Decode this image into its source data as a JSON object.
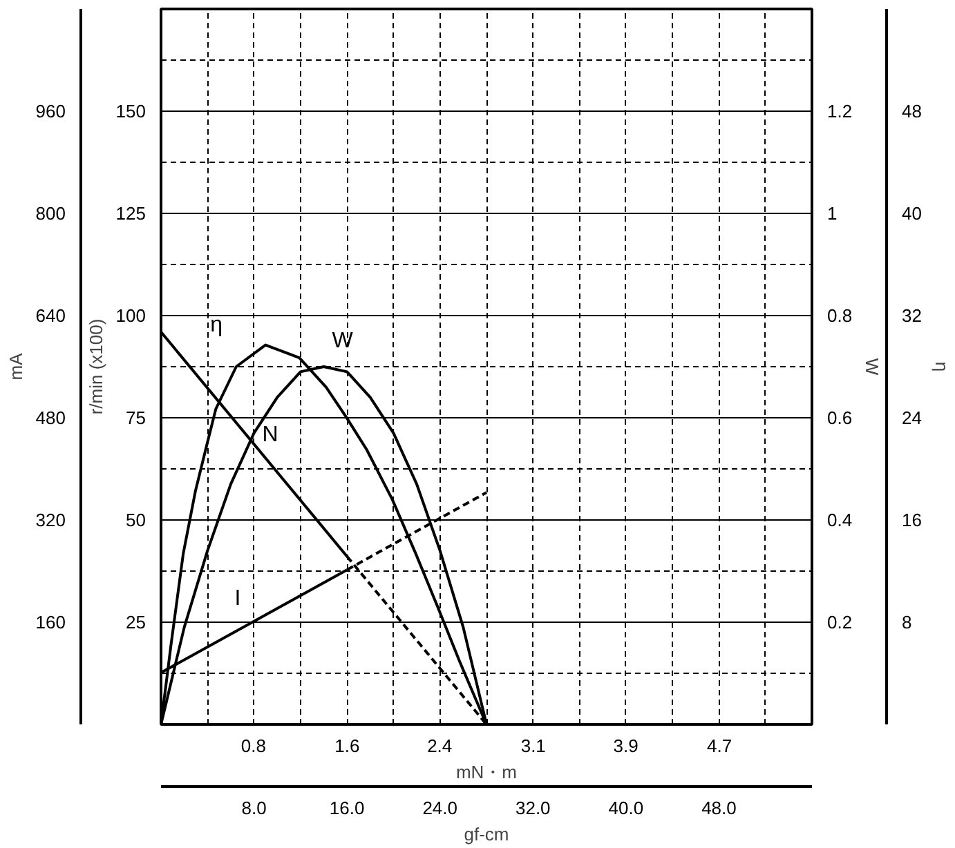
{
  "chart_data": [
    {
      "type": "line",
      "xlabel": "gf-cm",
      "x2label": "mN・m",
      "ylabel": "r/min (x100)",
      "y2label": "mA",
      "y3label": "W",
      "xlim": [
        0,
        56
      ],
      "xticks": [
        {
          "value": 8,
          "label": "8.0"
        },
        {
          "value": 16,
          "label": "16.0"
        },
        {
          "value": 24,
          "label": "24.0"
        },
        {
          "value": 32,
          "label": "32.0"
        },
        {
          "value": 40,
          "label": "40.0"
        },
        {
          "value": 48,
          "label": "48.0"
        }
      ],
      "x2lim": [
        0,
        5.49
      ],
      "x2ticks": [
        {
          "value": 0.78,
          "label": "0.8"
        },
        {
          "value": 1.57,
          "label": "1.6"
        },
        {
          "value": 2.35,
          "label": "2.4"
        },
        {
          "value": 3.14,
          "label": "3.1"
        },
        {
          "value": 3.92,
          "label": "3.9"
        },
        {
          "value": 4.71,
          "label": "4.7"
        }
      ],
      "ylim": [
        0,
        175
      ],
      "yticks": [
        25,
        50,
        75,
        100,
        125,
        150
      ],
      "y2lim": [
        0,
        1120
      ],
      "y2ticks": [
        160,
        320,
        480,
        640,
        800,
        960
      ],
      "y3lim": [
        0,
        1.4
      ],
      "y3ticks": [
        0.2,
        0.4,
        0.6,
        0.8,
        1.0,
        1.2
      ],
      "grid": true,
      "series": [
        {
          "name": "N",
          "color": "#000000",
          "x": [
            0,
            16
          ],
          "values": [
            96,
            41.1
          ]
        },
        {
          "color": "#000000",
          "x": [
            16,
            28
          ],
          "values": [
            41.1,
            0
          ],
          "line_style": "dashed"
        },
        {
          "name": "I",
          "color": "#000000",
          "axis": "y2",
          "x": [
            0,
            16
          ],
          "values": [
            81,
            242
          ]
        },
        {
          "color": "#000000",
          "axis": "y2",
          "x": [
            16,
            28
          ],
          "values": [
            242,
            363
          ],
          "line_style": "dashed"
        },
        {
          "name": "W",
          "color": "#000000",
          "axis": "y3",
          "x": [
            0,
            2,
            4,
            6,
            8,
            10,
            12,
            14,
            16,
            18,
            20,
            22,
            24,
            26,
            28
          ],
          "values": [
            0,
            0.19,
            0.34,
            0.47,
            0.57,
            0.64,
            0.69,
            0.7,
            0.69,
            0.64,
            0.57,
            0.47,
            0.34,
            0.19,
            0
          ]
        }
      ]
    },
    {
      "type": "line",
      "ylabel": "η",
      "xlim": [
        0,
        56
      ],
      "ylim": [
        0,
        56
      ],
      "yticks": [
        8,
        16,
        24,
        32,
        40,
        48
      ],
      "tick_labels": "y",
      "series": [
        {
          "name": "η",
          "color": "#000000",
          "x": [
            0,
            0.87,
            1.92,
            2.97,
            3.92,
            4.72,
            6.47,
            8.99,
            11.9,
            14.2,
            15.9,
            17.7,
            19.9,
            21.9,
            23.8,
            25.7,
            28
          ],
          "values": [
            0,
            6.3,
            13.4,
            18.3,
            21.8,
            24.7,
            28.0,
            29.7,
            28.7,
            26.4,
            24.1,
            21.5,
            17.6,
            13.4,
            9.2,
            4.9,
            0
          ]
        }
      ]
    }
  ]
}
